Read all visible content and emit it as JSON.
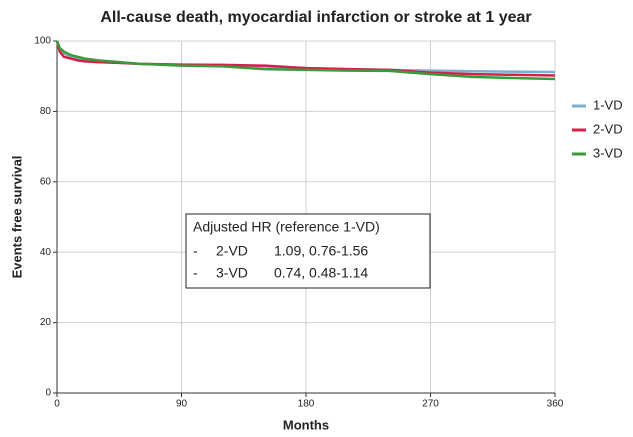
{
  "chart_data": {
    "type": "line",
    "title": "All-cause death, myocardial infarction or stroke at 1 year",
    "x_label": "Months",
    "y_label": "Events free survival",
    "x": [
      0,
      2,
      5,
      10,
      15,
      20,
      30,
      45,
      60,
      90,
      120,
      150,
      180,
      210,
      240,
      270,
      300,
      330,
      360
    ],
    "series": [
      {
        "name": "1-VD",
        "color": "#7bafd4",
        "values": [
          100,
          98,
          96.5,
          95.5,
          95,
          94.5,
          94,
          93.8,
          93.5,
          93.2,
          93,
          92.8,
          92.3,
          92,
          91.8,
          91.6,
          91.4,
          91.3,
          91.2
        ]
      },
      {
        "name": "2-VD",
        "color": "#d6204a",
        "values": [
          100,
          97,
          95.5,
          95,
          94.5,
          94.2,
          94,
          93.8,
          93.5,
          93.3,
          93.2,
          93,
          92.3,
          92,
          91.8,
          91,
          90.6,
          90.4,
          90.2
        ]
      },
      {
        "name": "3-VD",
        "color": "#3a9b3a",
        "values": [
          100,
          98,
          97,
          96,
          95.5,
          95,
          94.5,
          94,
          93.5,
          93,
          92.8,
          92,
          91.8,
          91.6,
          91.5,
          90.6,
          89.8,
          89.5,
          89.2
        ]
      }
    ],
    "xlim": [
      0,
      360
    ],
    "xticks": [
      0,
      90,
      180,
      270,
      360
    ],
    "ylim": [
      0,
      100
    ],
    "yticks": [
      0,
      20,
      40,
      60,
      80,
      100
    ],
    "grid": true,
    "legend": "right",
    "annotation": {
      "title": "Adjusted HR (reference 1-VD)",
      "rows": [
        [
          "-",
          "2-VD",
          "1.09, 0.76-1.56"
        ],
        [
          "-",
          "3-VD",
          "0.74, 0.48-1.14"
        ]
      ]
    }
  }
}
